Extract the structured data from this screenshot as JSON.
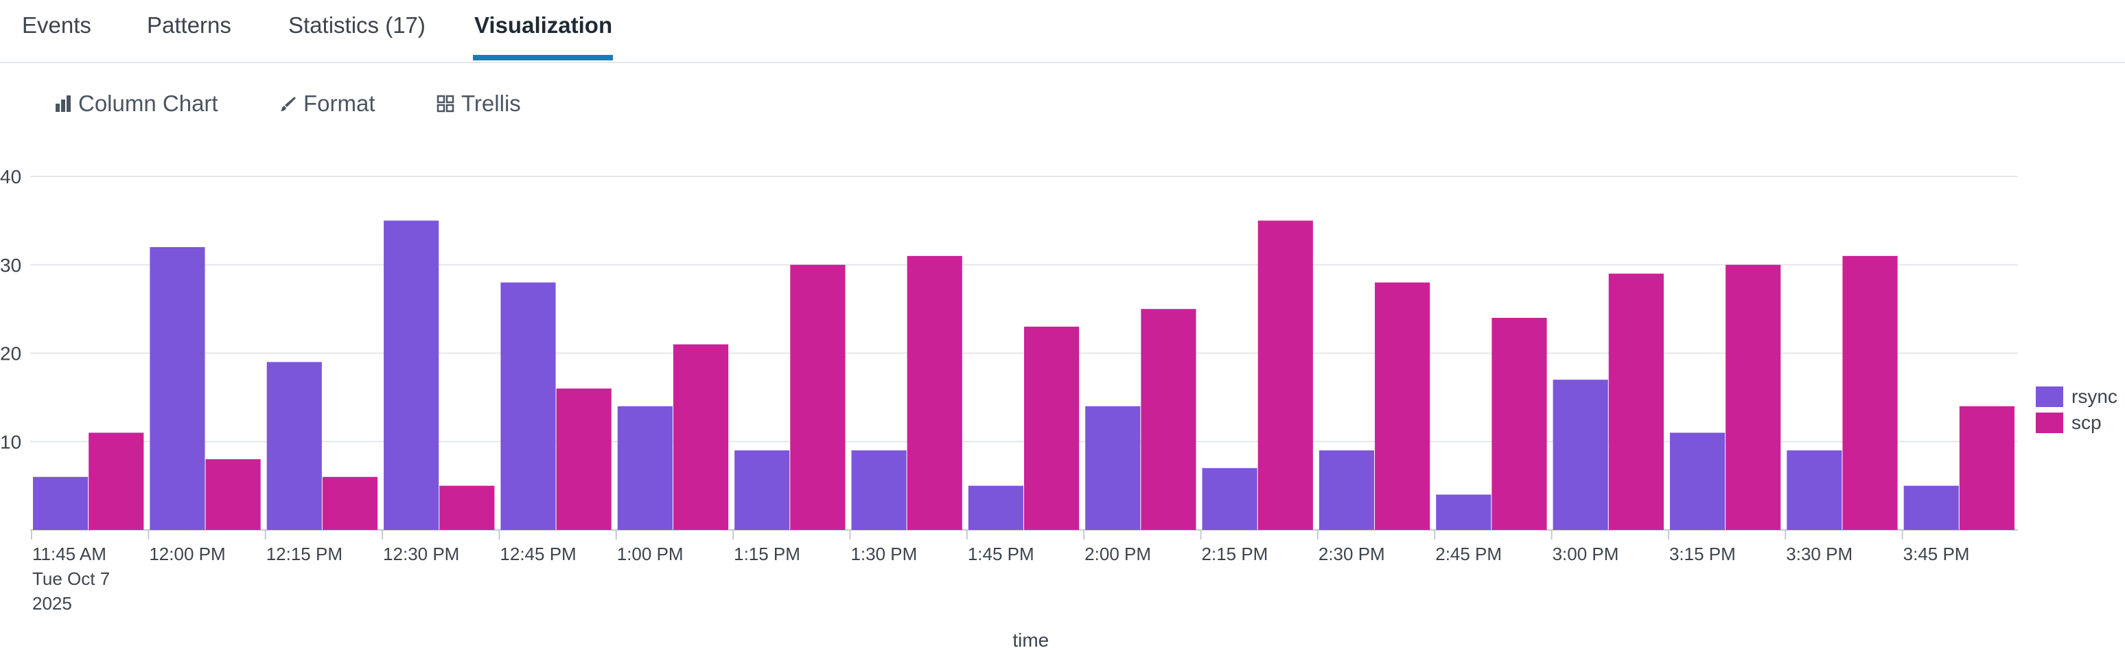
{
  "tabs": [
    {
      "label": "Events"
    },
    {
      "label": "Patterns"
    },
    {
      "label": "Statistics (17)"
    },
    {
      "label": "Visualization",
      "active": true
    }
  ],
  "toolbar": {
    "chart_type_label": "Column Chart",
    "format_label": "Format",
    "trellis_label": "Trellis"
  },
  "colors": {
    "rsync": "#7b56db",
    "scp": "#cb2196",
    "accent": "#1a7cb5"
  },
  "chart_data": {
    "type": "bar",
    "categories": [
      "11:45 AM",
      "12:00 PM",
      "12:15 PM",
      "12:30 PM",
      "12:45 PM",
      "1:00 PM",
      "1:15 PM",
      "1:30 PM",
      "1:45 PM",
      "2:00 PM",
      "2:15 PM",
      "2:30 PM",
      "2:45 PM",
      "3:00 PM",
      "3:15 PM",
      "3:30 PM",
      "3:45 PM"
    ],
    "first_tick_sublabel": [
      "Tue Oct 7",
      "2025"
    ],
    "series": [
      {
        "name": "rsync",
        "values": [
          6,
          32,
          19,
          35,
          28,
          14,
          9,
          9,
          5,
          14,
          7,
          9,
          4,
          17,
          11,
          9,
          5
        ]
      },
      {
        "name": "scp",
        "values": [
          11,
          8,
          6,
          5,
          16,
          21,
          30,
          31,
          23,
          25,
          35,
          28,
          24,
          29,
          30,
          31,
          14
        ]
      }
    ],
    "xlabel": "_time",
    "ylabel": "",
    "ylim": [
      0,
      40
    ],
    "yticks": [
      10,
      20,
      30,
      40
    ],
    "grid": true,
    "legend": "right"
  }
}
